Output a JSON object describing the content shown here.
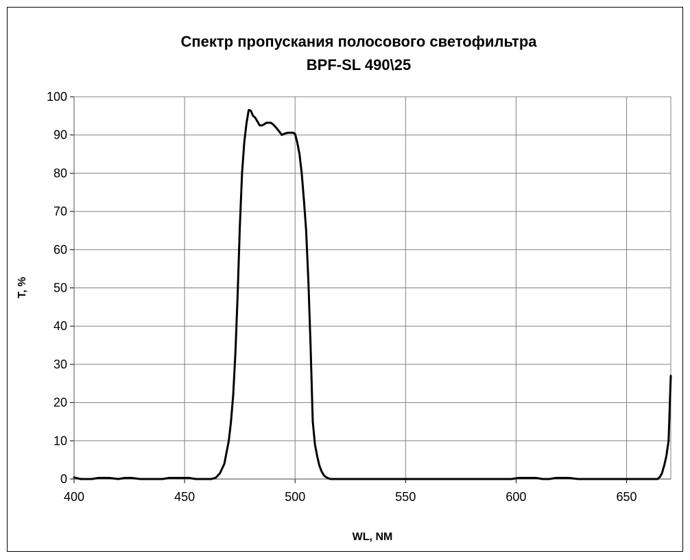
{
  "chart_data": {
    "type": "line",
    "title": "Спектр пропускания полосового светофильтра",
    "subtitle": "BPF-SL 490\\25",
    "xlabel": "WL, NM",
    "ylabel": "T, %",
    "xlim": [
      400,
      670
    ],
    "ylim": [
      0,
      100
    ],
    "xticks": [
      400,
      450,
      500,
      550,
      600,
      650
    ],
    "yticks": [
      0,
      10,
      20,
      30,
      40,
      50,
      60,
      70,
      80,
      90,
      100
    ],
    "grid": true,
    "series": [
      {
        "color": "#000000",
        "x": [
          400,
          403,
          408,
          411,
          416,
          420,
          423,
          426,
          430,
          435,
          440,
          443,
          447,
          452,
          455,
          459,
          462,
          464,
          466,
          468,
          470,
          471,
          472,
          473,
          474,
          475,
          476,
          477,
          478,
          479,
          479.5,
          480,
          481,
          482,
          483,
          484,
          485,
          486,
          487,
          488,
          489,
          490,
          491,
          492,
          493,
          494,
          495,
          496,
          497,
          498,
          499,
          500,
          501,
          502,
          503,
          504,
          505,
          506,
          507,
          508,
          509,
          510,
          511,
          512,
          513,
          514,
          515,
          516,
          517,
          518,
          520,
          525,
          530,
          540,
          550,
          560,
          570,
          580,
          590,
          598,
          601,
          605,
          609,
          612,
          615,
          618,
          621,
          624,
          628,
          635,
          645,
          655,
          662,
          664,
          665,
          666,
          667,
          668,
          669,
          670
        ],
        "y": [
          0.4,
          0,
          0,
          0.3,
          0.3,
          0,
          0.3,
          0.3,
          0,
          0,
          0,
          0.3,
          0.3,
          0.3,
          0,
          0,
          0,
          0.3,
          1.5,
          4,
          10,
          15,
          22,
          33,
          48,
          66,
          80,
          88,
          93,
          96.5,
          96.5,
          96.3,
          95,
          94.5,
          93.5,
          92.5,
          92.5,
          92.8,
          93.2,
          93.2,
          93.2,
          92.8,
          92.2,
          91.5,
          90.8,
          90,
          90.3,
          90.5,
          90.6,
          90.6,
          90.6,
          90.3,
          88,
          85,
          80,
          73,
          65,
          52,
          35,
          15,
          9,
          6,
          3.5,
          2,
          1,
          0.5,
          0.2,
          0,
          0,
          0,
          0,
          0,
          0,
          0,
          0,
          0,
          0,
          0,
          0,
          0,
          0.3,
          0.3,
          0.3,
          0,
          0,
          0.3,
          0.3,
          0.3,
          0,
          0,
          0,
          0,
          0,
          0,
          0.5,
          1.5,
          3.5,
          6,
          10,
          27
        ]
      }
    ]
  }
}
